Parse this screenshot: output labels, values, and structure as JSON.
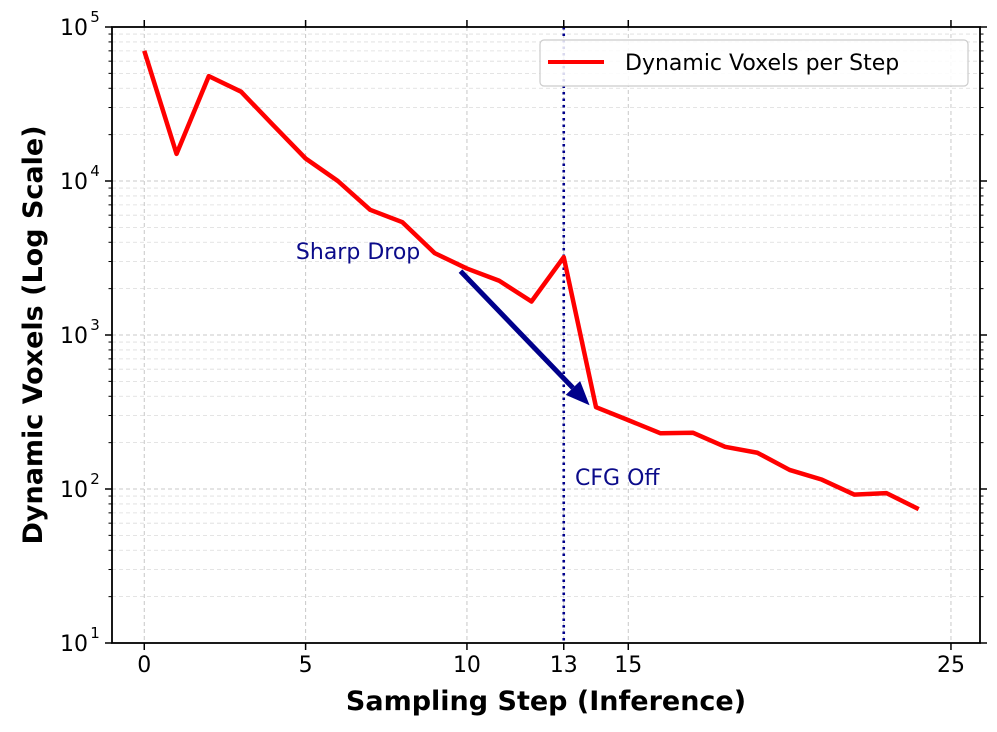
{
  "chart_data": {
    "type": "line",
    "title": "",
    "xlabel": "Sampling Step (Inference)",
    "ylabel": "Dynamic Voxels (Log Scale)",
    "xlim": [
      -1,
      25.9
    ],
    "ylim": [
      10,
      100000
    ],
    "yscale": "log",
    "xticks": [
      0,
      5,
      10,
      13,
      15,
      25
    ],
    "yticks": [
      {
        "value": 10,
        "base": "10",
        "exp": "1"
      },
      {
        "value": 100,
        "base": "10",
        "exp": "2"
      },
      {
        "value": 1000,
        "base": "10",
        "exp": "3"
      },
      {
        "value": 10000,
        "base": "10",
        "exp": "4"
      },
      {
        "value": 100000,
        "base": "10",
        "exp": "5"
      }
    ],
    "grid": true,
    "legend": {
      "placement": "top-right"
    },
    "series": [
      {
        "name": "Dynamic Voxels per Step",
        "color": "#ff0000",
        "x": [
          0,
          1,
          2,
          3,
          4,
          5,
          6,
          7,
          8,
          9,
          10,
          11,
          12,
          13,
          14,
          15,
          16,
          17,
          18,
          19,
          20,
          21,
          22,
          23,
          24
        ],
        "y": [
          70000,
          15000,
          48000,
          38000,
          23000,
          14000,
          10000,
          6500,
          5400,
          3400,
          2700,
          2250,
          1650,
          3200,
          340,
          280,
          230,
          232,
          188,
          172,
          133,
          115,
          92,
          94,
          74
        ]
      }
    ],
    "annotations": {
      "vline": {
        "x": 13,
        "label": "CFG Off",
        "color": "#00008b",
        "label_x": 13.35,
        "label_y": 120
      },
      "arrow": {
        "label": "Sharp Drop",
        "text_x": 4.7,
        "text_y": 3500,
        "from_x": 9.8,
        "from_y": 2600,
        "to_x": 13.8,
        "to_y": 350,
        "color": "#00008b"
      }
    }
  }
}
